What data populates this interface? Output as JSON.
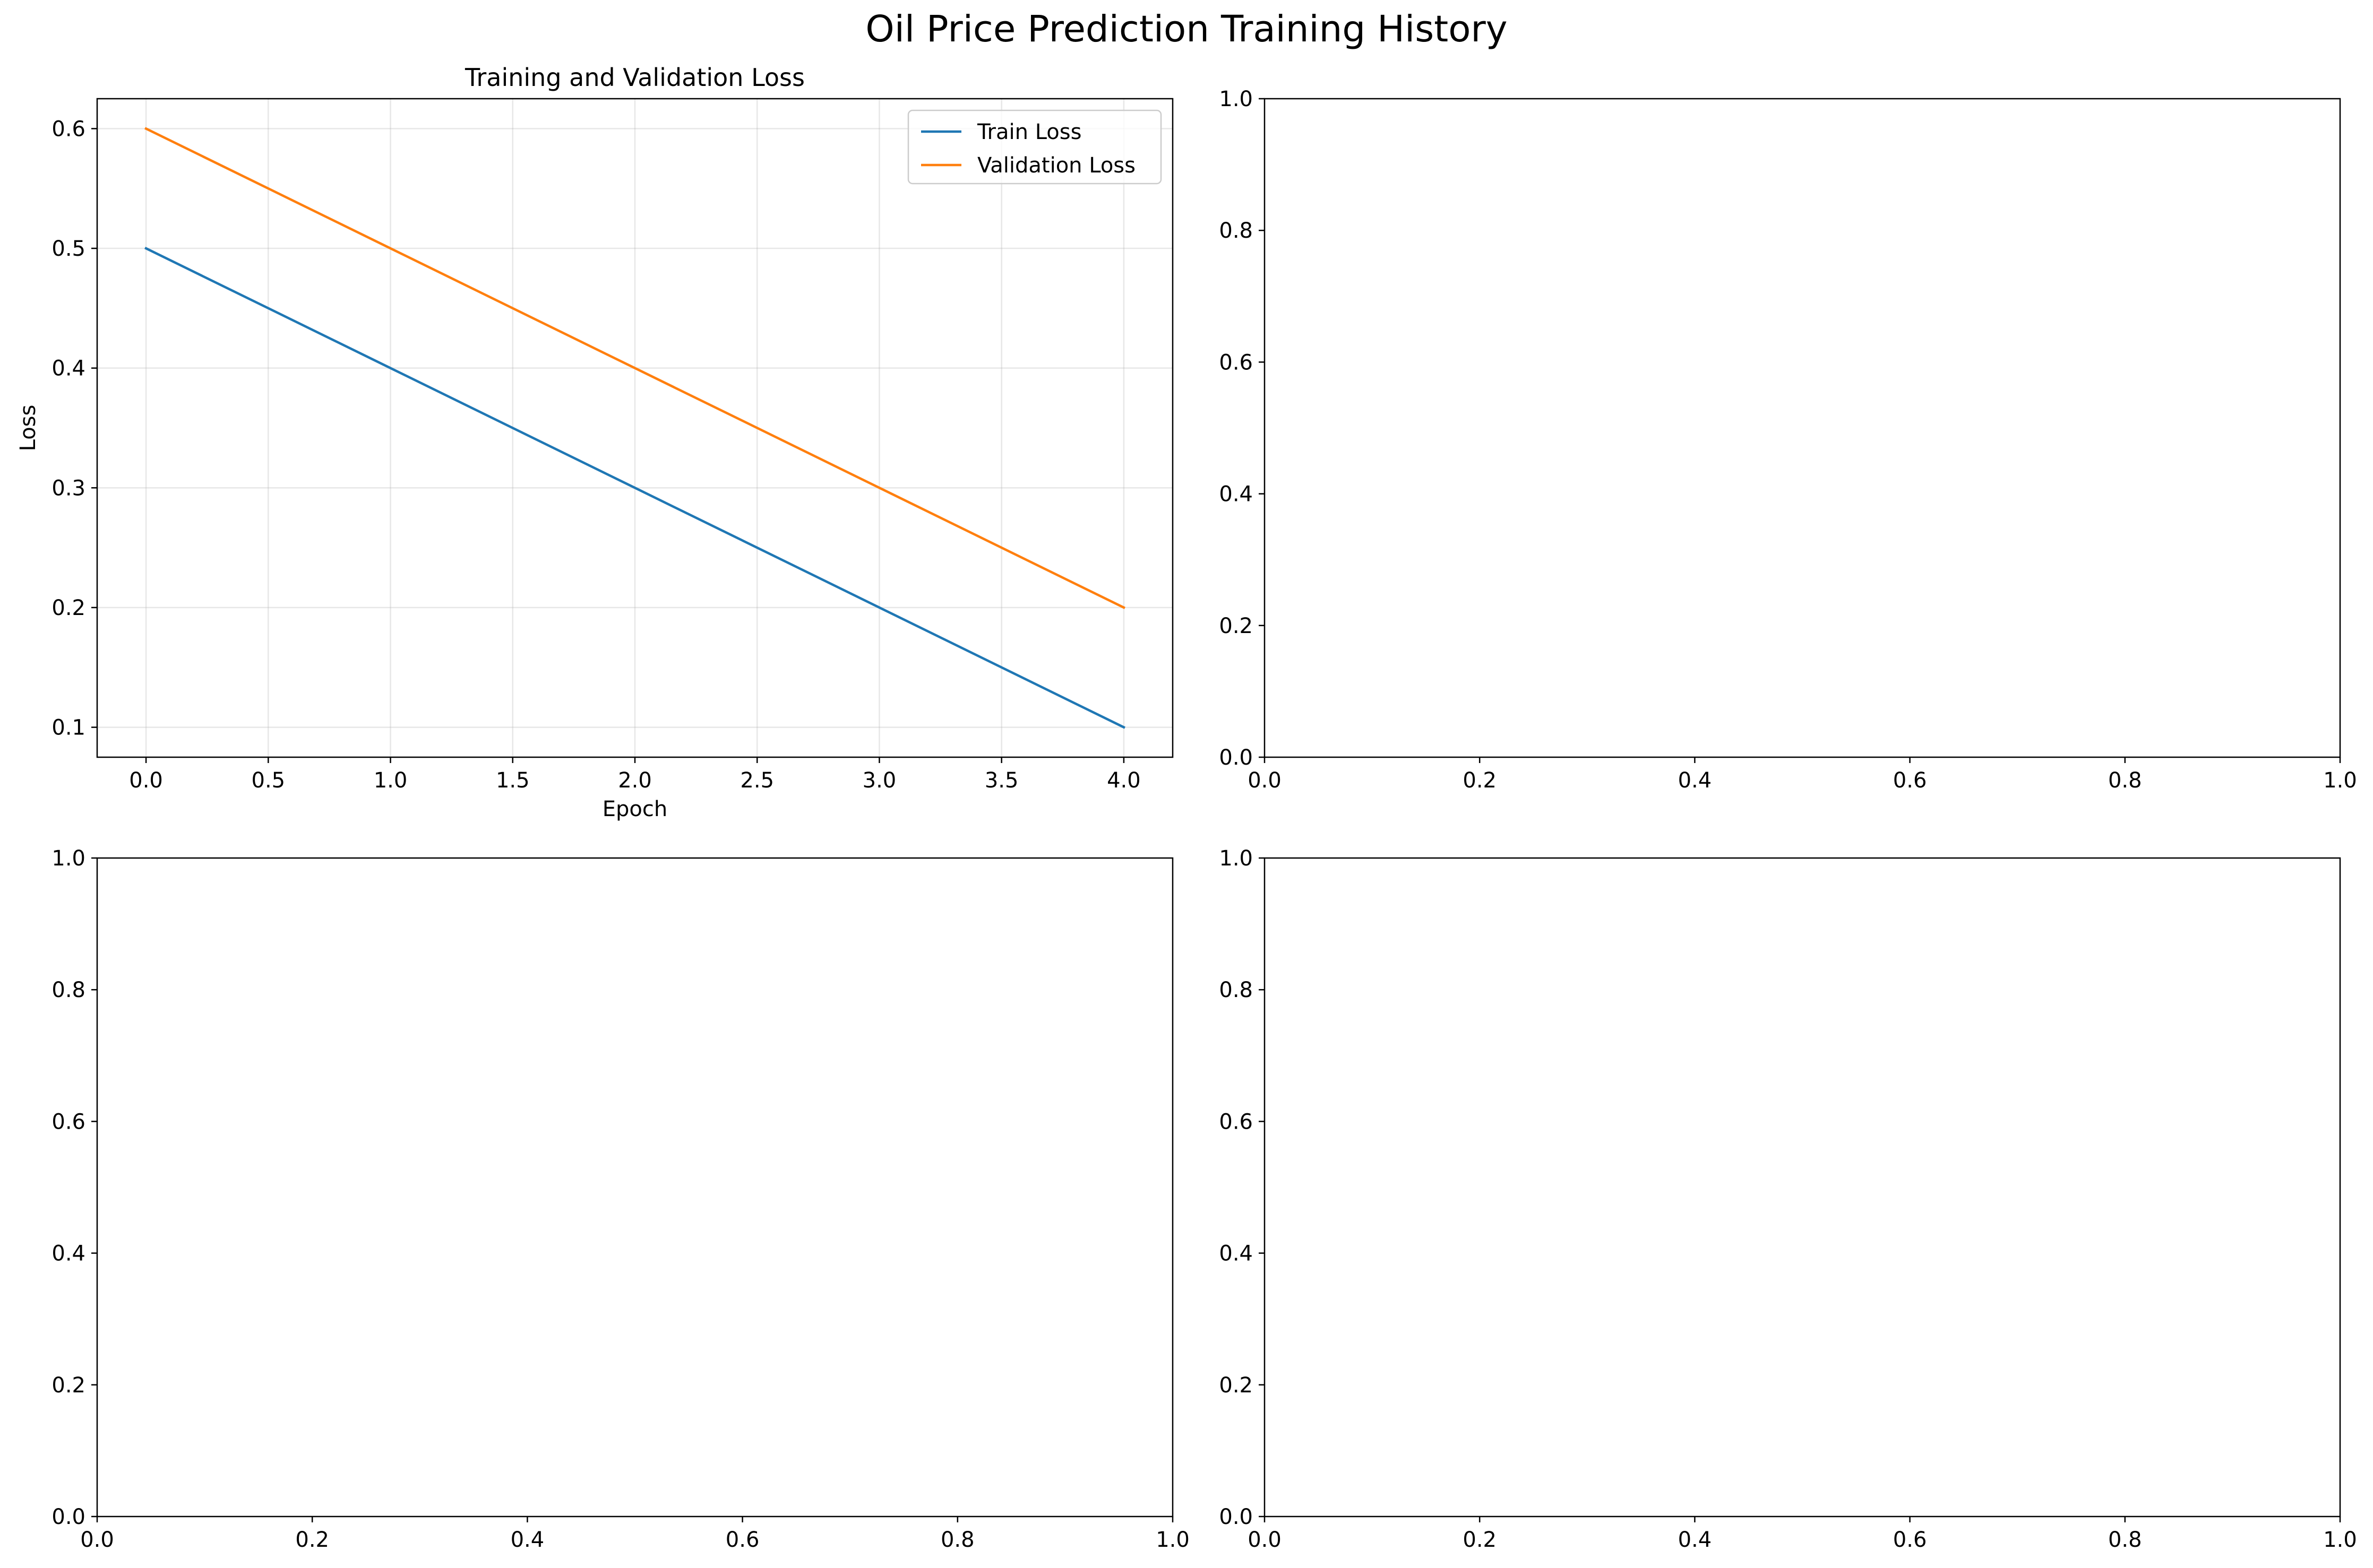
{
  "figure": {
    "title": "Oil Price Prediction Training History"
  },
  "chart_data": [
    {
      "type": "line",
      "title": "Training and Validation Loss",
      "xlabel": "Epoch",
      "ylabel": "Loss",
      "x": [
        0,
        1,
        2,
        3,
        4
      ],
      "series": [
        {
          "name": "Train Loss",
          "values": [
            0.5,
            0.4,
            0.3,
            0.2,
            0.1
          ],
          "color": "#1f77b4"
        },
        {
          "name": "Validation Loss",
          "values": [
            0.6,
            0.5,
            0.4,
            0.3,
            0.2
          ],
          "color": "#ff7f0e"
        }
      ],
      "xlim": [
        -0.2,
        4.2
      ],
      "ylim": [
        0.075,
        0.625
      ],
      "xticks": [
        0.0,
        0.5,
        1.0,
        1.5,
        2.0,
        2.5,
        3.0,
        3.5,
        4.0
      ],
      "yticks": [
        0.1,
        0.2,
        0.3,
        0.4,
        0.5,
        0.6
      ],
      "xtick_labels": [
        "0.0",
        "0.5",
        "1.0",
        "1.5",
        "2.0",
        "2.5",
        "3.0",
        "3.5",
        "4.0"
      ],
      "ytick_labels": [
        "0.1",
        "0.2",
        "0.3",
        "0.4",
        "0.5",
        "0.6"
      ],
      "grid": true,
      "legend": "top-right"
    },
    {
      "type": "line",
      "title": "",
      "xlabel": "",
      "ylabel": "",
      "series": [],
      "xlim": [
        0,
        1
      ],
      "ylim": [
        0,
        1
      ],
      "xticks": [
        0.0,
        0.2,
        0.4,
        0.6,
        0.8,
        1.0
      ],
      "yticks": [
        0.0,
        0.2,
        0.4,
        0.6,
        0.8,
        1.0
      ],
      "xtick_labels": [
        "0.0",
        "0.2",
        "0.4",
        "0.6",
        "0.8",
        "1.0"
      ],
      "ytick_labels": [
        "0.0",
        "0.2",
        "0.4",
        "0.6",
        "0.8",
        "1.0"
      ],
      "grid": false
    },
    {
      "type": "line",
      "title": "",
      "xlabel": "",
      "ylabel": "",
      "series": [],
      "xlim": [
        0,
        1
      ],
      "ylim": [
        0,
        1
      ],
      "xticks": [
        0.0,
        0.2,
        0.4,
        0.6,
        0.8,
        1.0
      ],
      "yticks": [
        0.0,
        0.2,
        0.4,
        0.6,
        0.8,
        1.0
      ],
      "xtick_labels": [
        "0.0",
        "0.2",
        "0.4",
        "0.6",
        "0.8",
        "1.0"
      ],
      "ytick_labels": [
        "0.0",
        "0.2",
        "0.4",
        "0.6",
        "0.8",
        "1.0"
      ],
      "grid": false
    },
    {
      "type": "line",
      "title": "",
      "xlabel": "",
      "ylabel": "",
      "series": [],
      "xlim": [
        0,
        1
      ],
      "ylim": [
        0,
        1
      ],
      "xticks": [
        0.0,
        0.2,
        0.4,
        0.6,
        0.8,
        1.0
      ],
      "yticks": [
        0.0,
        0.2,
        0.4,
        0.6,
        0.8,
        1.0
      ],
      "xtick_labels": [
        "0.0",
        "0.2",
        "0.4",
        "0.6",
        "0.8",
        "1.0"
      ],
      "ytick_labels": [
        "0.0",
        "0.2",
        "0.4",
        "0.6",
        "0.8",
        "1.0"
      ],
      "grid": false
    }
  ]
}
